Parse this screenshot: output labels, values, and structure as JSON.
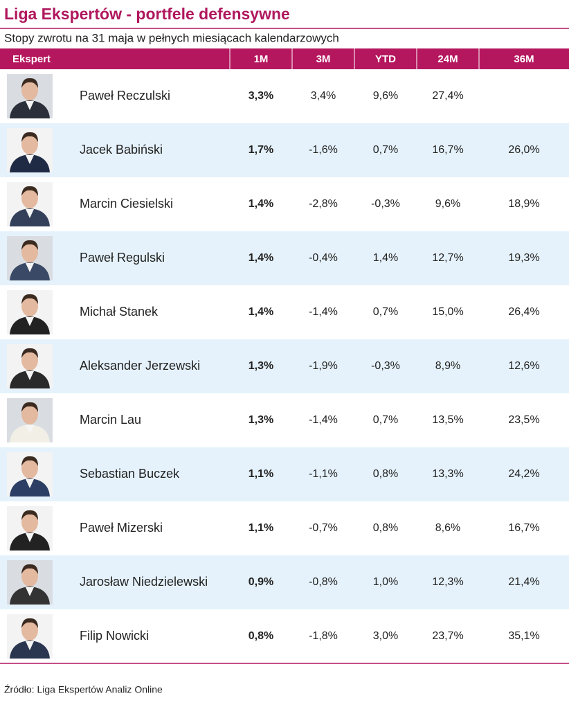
{
  "header": {
    "title": "Liga Ekspertów - portfele defensywne",
    "subtitle": "Stopy zwrotu na 31 maja w pełnych miesiącach kalendarzowych"
  },
  "table": {
    "columns": [
      "Ekspert",
      "1M",
      "3M",
      "YTD",
      "24M",
      "36M"
    ],
    "rows": [
      [
        "Paweł Reczulski",
        "3,3%",
        "3,4%",
        "9,6%",
        "27,4%",
        null
      ],
      [
        "Jacek Babiński",
        "1,7%",
        "-1,6%",
        "0,7%",
        "16,7%",
        "26,0%"
      ],
      [
        "Marcin Ciesielski",
        "1,4%",
        "-2,8%",
        "-0,3%",
        "9,6%",
        "18,9%"
      ],
      [
        "Paweł Regulski",
        "1,4%",
        "-0,4%",
        "1,4%",
        "12,7%",
        "19,3%"
      ],
      [
        "Michał Stanek",
        "1,4%",
        "-1,4%",
        "0,7%",
        "15,0%",
        "26,4%"
      ],
      [
        "Aleksander Jerzewski",
        "1,3%",
        "-1,9%",
        "-0,3%",
        "8,9%",
        "12,6%"
      ],
      [
        "Marcin Lau",
        "1,3%",
        "-1,4%",
        "0,7%",
        "13,5%",
        "23,5%"
      ],
      [
        "Sebastian Buczek",
        "1,1%",
        "-1,1%",
        "0,8%",
        "13,3%",
        "24,2%"
      ],
      [
        "Paweł Mizerski",
        "1,1%",
        "-0,7%",
        "0,8%",
        "8,6%",
        "16,7%"
      ],
      [
        "Jarosław Niedzielewski",
        "0,9%",
        "-0,8%",
        "1,0%",
        "12,3%",
        "21,4%"
      ],
      [
        "Filip Nowicki",
        "0,8%",
        "-1,8%",
        "3,0%",
        "23,7%",
        "35,1%"
      ]
    ]
  },
  "source": "Źródło: Liga Ekspertów Analiz Online"
}
